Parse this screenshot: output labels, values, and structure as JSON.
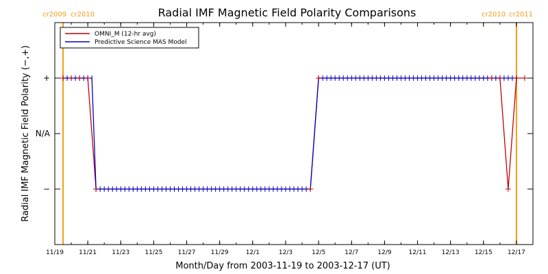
{
  "chart_data": {
    "type": "line",
    "title": "Radial IMF Magnetic Field Polarity Comparisons",
    "xlabel": "Month/Day from 2003-11-19 to 2003-12-17 (UT)",
    "ylabel": "Radial IMF Magnetic Field Polarity (−,+)",
    "x_unit": "days",
    "xlim": [
      "2003-11-19",
      "2003-12-18"
    ],
    "x_ticks": [
      {
        "date": "2003-11-19",
        "label": "11/19"
      },
      {
        "date": "2003-11-21",
        "label": "11/21"
      },
      {
        "date": "2003-11-23",
        "label": "11/23"
      },
      {
        "date": "2003-11-25",
        "label": "11/25"
      },
      {
        "date": "2003-11-27",
        "label": "11/27"
      },
      {
        "date": "2003-11-29",
        "label": "11/29"
      },
      {
        "date": "2003-12-01",
        "label": "12/1"
      },
      {
        "date": "2003-12-03",
        "label": "12/3"
      },
      {
        "date": "2003-12-05",
        "label": "12/5"
      },
      {
        "date": "2003-12-07",
        "label": "12/7"
      },
      {
        "date": "2003-12-09",
        "label": "12/9"
      },
      {
        "date": "2003-12-11",
        "label": "12/11"
      },
      {
        "date": "2003-12-13",
        "label": "12/13"
      },
      {
        "date": "2003-12-15",
        "label": "12/15"
      },
      {
        "date": "2003-12-17",
        "label": "12/17"
      }
    ],
    "y_ticks": [
      {
        "value": 1,
        "label": "+"
      },
      {
        "value": 0,
        "label": "N/A"
      },
      {
        "value": -1,
        "label": "−"
      }
    ],
    "ylim": [
      -2,
      2
    ],
    "grid": false,
    "legend_position": "top-left",
    "carrington_markers": [
      {
        "date": "2003-11-19 12:00",
        "labels": [
          "cr2009",
          "cr2010"
        ],
        "color": "#f59a1b"
      },
      {
        "date": "2003-12-17 00:00",
        "labels": [
          "cr2010",
          "cr2011"
        ],
        "color": "#f59a1b"
      }
    ],
    "series": [
      {
        "name": "OMNI_M (12-hr avg)",
        "color": "#c00000",
        "marker": "+",
        "points": [
          {
            "date": "2003-11-19 12:00",
            "y": 1
          },
          {
            "date": "2003-11-20 00:00",
            "y": 1
          },
          {
            "date": "2003-11-20 12:00",
            "y": 1
          },
          {
            "date": "2003-11-21 00:00",
            "y": 1
          },
          {
            "date": "2003-11-21 12:00",
            "y": -1
          },
          {
            "date": "2003-12-04 12:00",
            "y": -1
          },
          {
            "date": "2003-12-05 00:00",
            "y": 1
          },
          {
            "date": "2003-12-15 12:00",
            "y": 1
          },
          {
            "date": "2003-12-16 00:00",
            "y": 1
          },
          {
            "date": "2003-12-16 12:00",
            "y": -1
          },
          {
            "date": "2003-12-17 00:00",
            "y": 1
          },
          {
            "date": "2003-12-17 12:00",
            "y": 1
          }
        ]
      },
      {
        "name": "Predictive Science MAS Model",
        "color": "#0000c8",
        "marker": "|",
        "points": [
          {
            "date": "2003-11-19 12:00",
            "y": 1
          },
          {
            "date": "2003-11-21 06:00",
            "y": 1
          },
          {
            "date": "2003-11-21 12:00",
            "y": -1
          },
          {
            "date": "2003-12-04 12:00",
            "y": -1
          },
          {
            "date": "2003-12-05 00:00",
            "y": 1
          },
          {
            "date": "2003-12-17 00:00",
            "y": 1
          }
        ]
      }
    ]
  },
  "colors": {
    "axes": "#000000",
    "marker_line": "#f59a1b",
    "omni": "#c00000",
    "mas": "#0000c8"
  }
}
